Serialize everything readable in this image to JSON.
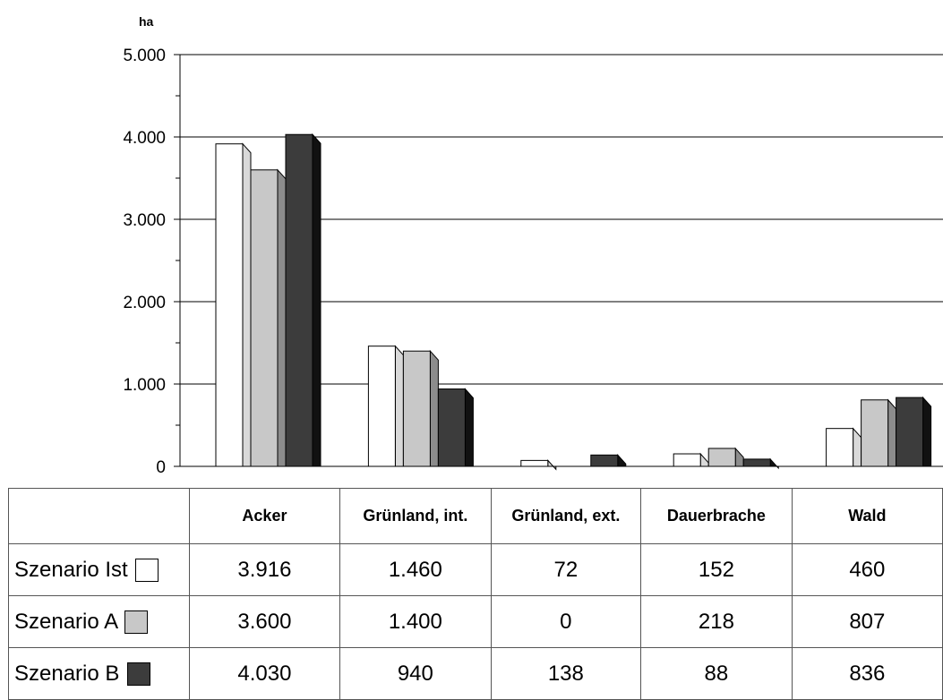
{
  "chart_data": {
    "type": "bar",
    "unit_label": "ha",
    "categories": [
      "Acker",
      "Grünland, int.",
      "Grünland, ext.",
      "Dauerbrache",
      "Wald"
    ],
    "series": [
      {
        "name": "Szenario Ist",
        "values": [
          3916,
          1460,
          72,
          152,
          460
        ],
        "display": [
          "3.916",
          "1.460",
          "72",
          "152",
          "460"
        ],
        "color": "#ffffff"
      },
      {
        "name": "Szenario A",
        "values": [
          3600,
          1400,
          0,
          218,
          807
        ],
        "display": [
          "3.600",
          "1.400",
          "0",
          "218",
          "807"
        ],
        "color": "#c8c8c8"
      },
      {
        "name": "Szenario B",
        "values": [
          4030,
          940,
          138,
          88,
          836
        ],
        "display": [
          "4.030",
          "940",
          "138",
          "88",
          "836"
        ],
        "color": "#3c3c3c"
      }
    ],
    "yticks": [
      "0",
      "1.000",
      "2.000",
      "3.000",
      "4.000",
      "5.000"
    ],
    "ylim": [
      0,
      5000
    ],
    "grid": true,
    "legend": "data table below chart"
  }
}
